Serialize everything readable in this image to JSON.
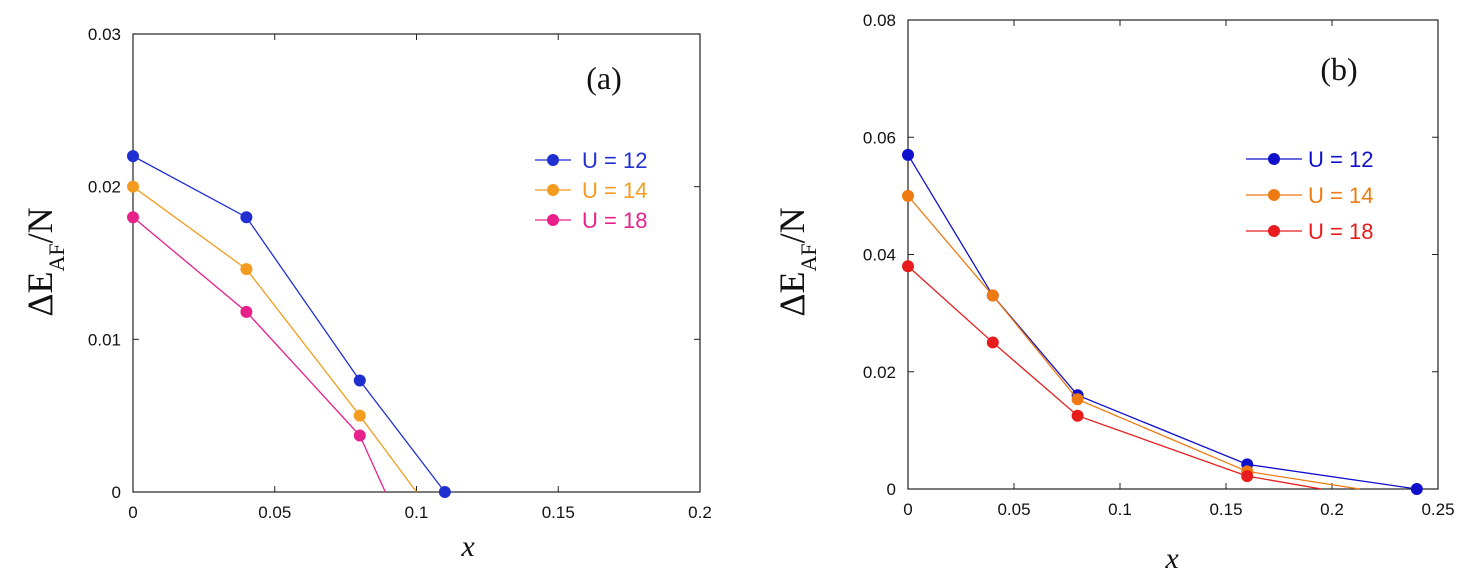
{
  "chart_data": [
    {
      "type": "line",
      "panel_label": "(a)",
      "ylabel": {
        "main": "ΔE",
        "sub": "AF",
        "tail": "/N"
      },
      "xlabel": "x",
      "xlim": [
        0,
        0.2
      ],
      "ylim": [
        0,
        0.03
      ],
      "xticks": [
        0,
        0.05,
        0.1,
        0.15,
        0.2
      ],
      "xtick_labels": [
        "0",
        "0.05",
        "0.1",
        "0.15",
        "0.2"
      ],
      "yticks": [
        0,
        0.01,
        0.02,
        0.03
      ],
      "ytick_labels": [
        "0",
        "0.01",
        "0.02",
        "0.03"
      ],
      "legend_position": "right",
      "series": [
        {
          "name": "U = 12",
          "color": "#1f2fd0",
          "points": [
            [
              0,
              0.022
            ],
            [
              0.04,
              0.018
            ],
            [
              0.08,
              0.0073
            ],
            [
              0.11,
              0.0
            ]
          ],
          "line_end": [
            0.11,
            0.0
          ]
        },
        {
          "name": "U = 14",
          "color": "#f39c1f",
          "points": [
            [
              0,
              0.02
            ],
            [
              0.04,
              0.0146
            ],
            [
              0.08,
              0.005
            ]
          ],
          "line_end": [
            0.1,
            0.0
          ]
        },
        {
          "name": "U = 18",
          "color": "#e8208a",
          "points": [
            [
              0,
              0.018
            ],
            [
              0.04,
              0.0118
            ],
            [
              0.08,
              0.0037
            ]
          ],
          "line_end": [
            0.089,
            0.0
          ]
        }
      ]
    },
    {
      "type": "line",
      "panel_label": "(b)",
      "ylabel": {
        "main": "ΔE",
        "sub": "AF",
        "tail": "/N"
      },
      "xlabel": "x",
      "xlim": [
        0,
        0.25
      ],
      "ylim": [
        0,
        0.08
      ],
      "xticks": [
        0,
        0.05,
        0.1,
        0.15,
        0.2,
        0.25
      ],
      "xtick_labels": [
        "0",
        "0.05",
        "0.1",
        "0.15",
        "0.2",
        "0.25"
      ],
      "yticks": [
        0,
        0.02,
        0.04,
        0.06,
        0.08
      ],
      "ytick_labels": [
        "0",
        "0.02",
        "0.04",
        "0.06",
        "0.08"
      ],
      "legend_position": "top-right",
      "series": [
        {
          "name": "U = 12",
          "color": "#1010cc",
          "points": [
            [
              0,
              0.057
            ],
            [
              0.04,
              0.033
            ],
            [
              0.08,
              0.016
            ],
            [
              0.16,
              0.0042
            ],
            [
              0.24,
              0.0
            ]
          ],
          "line_end": [
            0.24,
            0.0
          ]
        },
        {
          "name": "U = 14",
          "color": "#ef7a12",
          "points": [
            [
              0,
              0.05
            ],
            [
              0.04,
              0.033
            ],
            [
              0.08,
              0.0153
            ],
            [
              0.16,
              0.003
            ]
          ],
          "line_end": [
            0.213,
            0.0
          ]
        },
        {
          "name": "U = 18",
          "color": "#e81c1c",
          "points": [
            [
              0,
              0.038
            ],
            [
              0.04,
              0.025
            ],
            [
              0.08,
              0.0125
            ],
            [
              0.16,
              0.0022
            ]
          ],
          "line_end": [
            0.195,
            0.0
          ]
        }
      ]
    }
  ]
}
